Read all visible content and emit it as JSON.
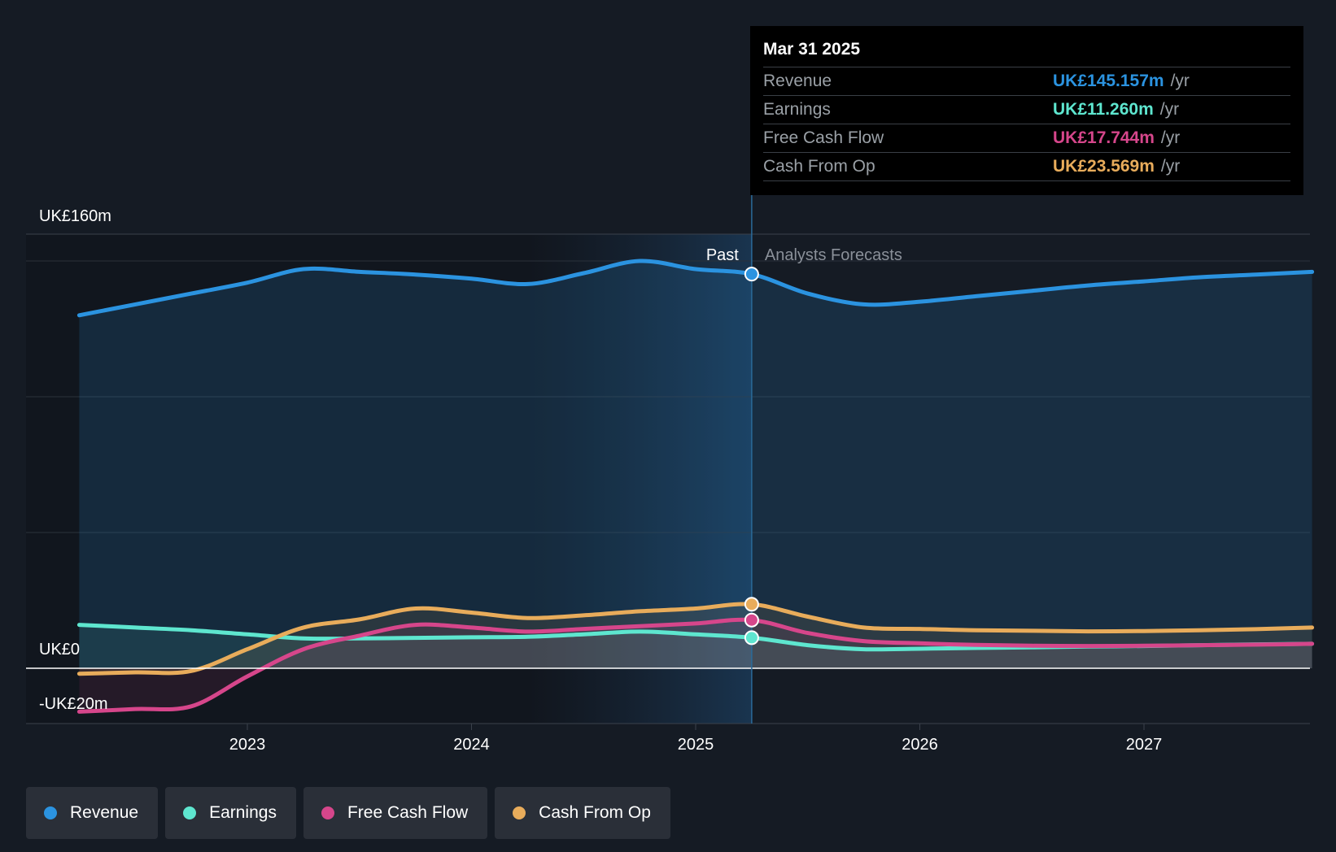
{
  "chart_data": {
    "type": "area",
    "y_axis": {
      "top_label": "UK£160m",
      "zero_label": "UK£0",
      "bottom_label": "-UK£20m",
      "ylim": [
        -20,
        160
      ],
      "gridlines": [
        0,
        50,
        100,
        150
      ]
    },
    "x_axis": {
      "ticks": [
        "2023",
        "2024",
        "2025",
        "2026",
        "2027"
      ],
      "xlim": [
        2022.0,
        2027.75
      ]
    },
    "past_label": "Past",
    "forecast_label": "Analysts Forecasts",
    "divider_x": 2025.25,
    "highlight_start_x": 2024.25,
    "series": [
      {
        "name": "Revenue",
        "color": "#2b93e0",
        "points": [
          [
            2022.25,
            130
          ],
          [
            2022.5,
            134
          ],
          [
            2022.75,
            138
          ],
          [
            2023.0,
            142
          ],
          [
            2023.25,
            147
          ],
          [
            2023.5,
            146
          ],
          [
            2023.75,
            145
          ],
          [
            2024.0,
            143.5
          ],
          [
            2024.25,
            141.5
          ],
          [
            2024.5,
            145.5
          ],
          [
            2024.75,
            150
          ],
          [
            2025.0,
            147
          ],
          [
            2025.25,
            145.157
          ],
          [
            2025.5,
            138
          ],
          [
            2025.75,
            134
          ],
          [
            2026.0,
            135
          ],
          [
            2026.25,
            137
          ],
          [
            2026.5,
            139
          ],
          [
            2026.75,
            141
          ],
          [
            2027.0,
            142.5
          ],
          [
            2027.25,
            144
          ],
          [
            2027.5,
            145
          ],
          [
            2027.75,
            146
          ]
        ]
      },
      {
        "name": "Earnings",
        "color": "#5ee6cf",
        "points": [
          [
            2022.25,
            16
          ],
          [
            2022.5,
            15
          ],
          [
            2022.75,
            14
          ],
          [
            2023.0,
            12.5
          ],
          [
            2023.25,
            11
          ],
          [
            2023.5,
            11
          ],
          [
            2023.75,
            11.2
          ],
          [
            2024.0,
            11.4
          ],
          [
            2024.25,
            11.6
          ],
          [
            2024.5,
            12.5
          ],
          [
            2024.75,
            13.5
          ],
          [
            2025.0,
            12.5
          ],
          [
            2025.25,
            11.26
          ],
          [
            2025.5,
            8.5
          ],
          [
            2025.75,
            7
          ],
          [
            2026.0,
            7.2
          ],
          [
            2026.25,
            7.5
          ],
          [
            2026.5,
            7.7
          ],
          [
            2026.75,
            8
          ],
          [
            2027.0,
            8.2
          ],
          [
            2027.25,
            8.5
          ],
          [
            2027.5,
            8.8
          ],
          [
            2027.75,
            9
          ]
        ]
      },
      {
        "name": "Free Cash Flow",
        "color": "#d6468b",
        "points": [
          [
            2022.25,
            -16
          ],
          [
            2022.5,
            -15
          ],
          [
            2022.75,
            -14
          ],
          [
            2023.0,
            -3
          ],
          [
            2023.25,
            7
          ],
          [
            2023.5,
            12
          ],
          [
            2023.75,
            16
          ],
          [
            2024.0,
            15
          ],
          [
            2024.25,
            13.5
          ],
          [
            2024.5,
            14.5
          ],
          [
            2024.75,
            15.5
          ],
          [
            2025.0,
            16.5
          ],
          [
            2025.25,
            17.744
          ],
          [
            2025.5,
            13
          ],
          [
            2025.75,
            10
          ],
          [
            2026.0,
            9.2
          ],
          [
            2026.25,
            8.6
          ],
          [
            2026.5,
            8.3
          ],
          [
            2026.75,
            8.2
          ],
          [
            2027.0,
            8.3
          ],
          [
            2027.25,
            8.5
          ],
          [
            2027.5,
            8.7
          ],
          [
            2027.75,
            9
          ]
        ]
      },
      {
        "name": "Cash From Op",
        "color": "#e8ac5b",
        "points": [
          [
            2022.25,
            -2
          ],
          [
            2022.5,
            -1.5
          ],
          [
            2022.75,
            -1
          ],
          [
            2023.0,
            7
          ],
          [
            2023.25,
            15
          ],
          [
            2023.5,
            18
          ],
          [
            2023.75,
            22
          ],
          [
            2024.0,
            20.5
          ],
          [
            2024.25,
            18.5
          ],
          [
            2024.5,
            19.5
          ],
          [
            2024.75,
            21
          ],
          [
            2025.0,
            22
          ],
          [
            2025.25,
            23.569
          ],
          [
            2025.5,
            19
          ],
          [
            2025.75,
            15
          ],
          [
            2026.0,
            14.5
          ],
          [
            2026.25,
            14
          ],
          [
            2026.5,
            13.8
          ],
          [
            2026.75,
            13.6
          ],
          [
            2027.0,
            13.7
          ],
          [
            2027.25,
            14
          ],
          [
            2027.5,
            14.4
          ],
          [
            2027.75,
            15
          ]
        ]
      }
    ]
  },
  "tooltip": {
    "date": "Mar 31 2025",
    "unit": "/yr",
    "rows": [
      {
        "name": "Revenue",
        "value": "UK£145.157m"
      },
      {
        "name": "Earnings",
        "value": "UK£11.260m"
      },
      {
        "name": "Free Cash Flow",
        "value": "UK£17.744m"
      },
      {
        "name": "Cash From Op",
        "value": "UK£23.569m"
      }
    ]
  },
  "legend": [
    {
      "label": "Revenue"
    },
    {
      "label": "Earnings"
    },
    {
      "label": "Free Cash Flow"
    },
    {
      "label": "Cash From Op"
    }
  ],
  "colors": {
    "background": "#151b24",
    "revenue": "#2b93e0",
    "earnings": "#5ee6cf",
    "free_cash_flow": "#d6468b",
    "cash_from_op": "#e8ac5b"
  }
}
